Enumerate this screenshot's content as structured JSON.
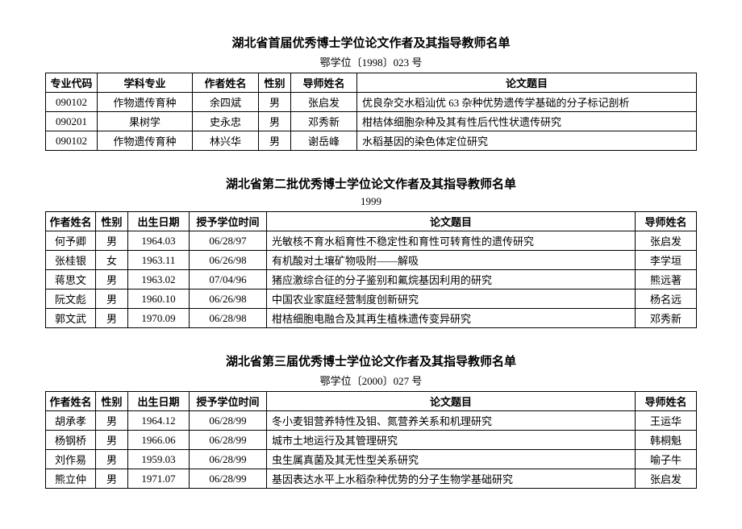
{
  "sections": [
    {
      "title": "湖北省首届优秀博士学位论文作者及其指导教师名单",
      "subtitle": "鄂学位〔1998〕023 号",
      "layout": "t1",
      "headers": [
        "专业代码",
        "学科专业",
        "作者姓名",
        "性别",
        "导师姓名",
        "论文题目"
      ],
      "rows": [
        [
          "090102",
          "作物遗传育种",
          "余四斌",
          "男",
          "张启发",
          "优良杂交水稻汕优 63 杂种优势遗传学基础的分子标记剖析"
        ],
        [
          "090201",
          "果树学",
          "史永忠",
          "男",
          "邓秀新",
          "柑桔体细胞杂种及其有性后代性状遗传研究"
        ],
        [
          "090102",
          "作物遗传育种",
          "林兴华",
          "男",
          "谢岳峰",
          "水稻基因的染色体定位研究"
        ]
      ]
    },
    {
      "title": "湖北省第二批优秀博士学位论文作者及其指导教师名单",
      "subtitle": "1999",
      "layout": "t2",
      "headers": [
        "作者姓名",
        "性别",
        "出生日期",
        "授予学位时间",
        "论文题目",
        "导师姓名"
      ],
      "rows": [
        [
          "何予卿",
          "男",
          "1964.03",
          "06/28/97",
          "光敏核不育水稻育性不稳定性和育性可转育性的遗传研究",
          "张启发"
        ],
        [
          "张桂银",
          "女",
          "1963.11",
          "06/26/98",
          "有机酸对土壤矿物吸附——解吸",
          "李学垣"
        ],
        [
          "蒋思文",
          "男",
          "1963.02",
          "07/04/96",
          "猪应激综合征的分子鉴别和氟烷基因利用的研究",
          "熊远著"
        ],
        [
          "阮文彪",
          "男",
          "1960.10",
          "06/26/98",
          "中国农业家庭经营制度创新研究",
          "杨名远"
        ],
        [
          "郭文武",
          "男",
          "1970.09",
          "06/28/98",
          "柑桔细胞电融合及其再生植株遗传变异研究",
          "邓秀新"
        ]
      ]
    },
    {
      "title": "湖北省第三届优秀博士学位论文作者及其指导教师名单",
      "subtitle": "鄂学位〔2000〕027 号",
      "layout": "t2",
      "headers": [
        "作者姓名",
        "性别",
        "出生日期",
        "授予学位时间",
        "论文题目",
        "导师姓名"
      ],
      "rows": [
        [
          "胡承孝",
          "男",
          "1964.12",
          "06/28/99",
          "冬小麦钼营养特性及钼、氮营养关系和机理研究",
          "王运华"
        ],
        [
          "杨钢桥",
          "男",
          "1966.06",
          "06/28/99",
          "城市土地运行及其管理研究",
          "韩桐魁"
        ],
        [
          "刘作易",
          "男",
          "1959.03",
          "06/28/99",
          "虫生属真菌及其无性型关系研究",
          "喻子牛"
        ],
        [
          "熊立仲",
          "男",
          "1971.07",
          "06/28/99",
          "基因表达水平上水稻杂种优势的分子生物学基础研究",
          "张启发"
        ]
      ]
    }
  ],
  "topicColIndex": {
    "t1": 5,
    "t2": 4
  }
}
